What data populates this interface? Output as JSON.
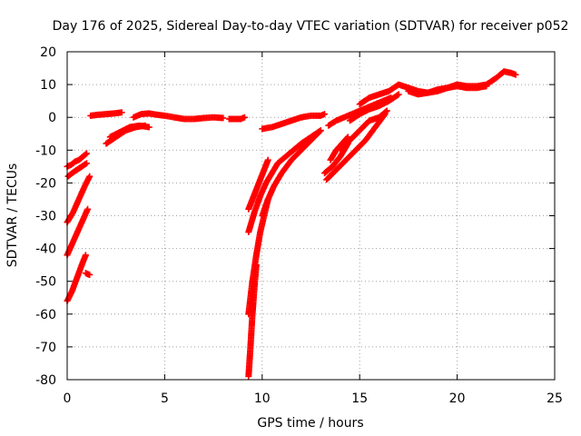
{
  "chart_data": {
    "type": "scatter",
    "title": "Day 176 of 2025, Sidereal Day-to-day VTEC variation (SDTVAR) for receiver p052",
    "xlabel": "GPS time / hours",
    "ylabel": "SDTVAR / TECUs",
    "xlim": [
      0,
      25
    ],
    "ylim": [
      -80,
      20
    ],
    "xticks": [
      "0",
      "5",
      "10",
      "15",
      "20",
      "25"
    ],
    "yticks": [
      "-80",
      "-70",
      "-60",
      "-50",
      "-40",
      "-30",
      "-20",
      "-10",
      "0",
      "10",
      "20"
    ],
    "grid": true,
    "marker": "+",
    "series": [
      {
        "name": "SDTVAR",
        "color": "#ff0000",
        "segments": [
          {
            "x": [
              0.0,
              0.2,
              0.4,
              0.6,
              0.8,
              1.0
            ],
            "y": [
              -15,
              -14.5,
              -13.5,
              -13,
              -12,
              -11
            ]
          },
          {
            "x": [
              0.05,
              0.25,
              0.5,
              0.75,
              1.0
            ],
            "y": [
              -18,
              -17,
              -16,
              -15,
              -14
            ]
          },
          {
            "x": [
              0.0,
              0.3,
              0.6,
              0.9,
              1.15
            ],
            "y": [
              -32,
              -29,
              -25,
              -21,
              -18
            ]
          },
          {
            "x": [
              0.0,
              0.3,
              0.6,
              0.9,
              1.05
            ],
            "y": [
              -42,
              -38,
              -34,
              -30,
              -28
            ]
          },
          {
            "x": [
              0.0,
              0.25,
              0.5,
              0.75,
              0.95
            ],
            "y": [
              -56,
              -53,
              -49,
              -45,
              -42
            ]
          },
          {
            "x": [
              0.95,
              1.05,
              1.15
            ],
            "y": [
              -47.5,
              -47.8,
              -48
            ]
          },
          {
            "x": [
              1.2,
              1.6,
              2.0,
              2.4,
              2.8
            ],
            "y": [
              0.5,
              0.8,
              1.0,
              1.2,
              1.5
            ]
          },
          {
            "x": [
              2.0,
              2.5,
              3.0,
              3.5,
              4.0
            ],
            "y": [
              -8,
              -6,
              -4,
              -3,
              -2.5
            ]
          },
          {
            "x": [
              2.2,
              2.7,
              3.2,
              3.7,
              4.2
            ],
            "y": [
              -6,
              -4.5,
              -3,
              -2.5,
              -3
            ]
          },
          {
            "x": [
              3.4,
              3.8,
              4.2,
              4.6,
              5.0,
              5.5,
              6.0,
              6.5,
              7.0,
              7.5,
              8.0
            ],
            "y": [
              0,
              1,
              1.2,
              0.8,
              0.5,
              0,
              -0.5,
              -0.5,
              -0.2,
              0,
              -0.2
            ]
          },
          {
            "x": [
              8.3,
              8.6,
              8.9,
              9.1
            ],
            "y": [
              -0.5,
              -0.5,
              -0.5,
              0
            ]
          },
          {
            "x": [
              9.3,
              9.4,
              9.5,
              9.6,
              9.7
            ],
            "y": [
              -79,
              -70,
              -60,
              -52,
              -45
            ]
          },
          {
            "x": [
              9.3,
              9.5,
              9.7,
              9.9,
              10.1,
              10.3
            ],
            "y": [
              -60,
              -50,
              -42,
              -35,
              -30,
              -25
            ]
          },
          {
            "x": [
              9.3,
              9.6,
              9.9,
              10.2,
              10.5,
              10.8,
              11.2,
              11.6,
              12.0,
              12.5,
              13.0
            ],
            "y": [
              -35,
              -29,
              -24,
              -20,
              -17,
              -14,
              -12,
              -10,
              -8,
              -6,
              -4
            ]
          },
          {
            "x": [
              9.3,
              9.5,
              9.7,
              9.9,
              10.1,
              10.3
            ],
            "y": [
              -28,
              -25,
              -22,
              -19,
              -16,
              -13
            ]
          },
          {
            "x": [
              10.0,
              10.3,
              10.6,
              11.0,
              11.5,
              12.0,
              12.5,
              13.0
            ],
            "y": [
              -30,
              -25,
              -21,
              -17,
              -13,
              -10,
              -7,
              -4
            ]
          },
          {
            "x": [
              10.0,
              10.5,
              11.0,
              11.5,
              12.0,
              12.5,
              13.0,
              13.2
            ],
            "y": [
              -3.5,
              -3,
              -2,
              -1,
              0,
              0.5,
              0.5,
              1
            ]
          },
          {
            "x": [
              13.2,
              13.6,
              14.0,
              14.4
            ],
            "y": [
              -17,
              -15,
              -12,
              -8
            ]
          },
          {
            "x": [
              13.5,
              13.8,
              14.1,
              14.4
            ],
            "y": [
              -13,
              -10,
              -8,
              -6
            ]
          },
          {
            "x": [
              13.3,
              13.8,
              14.3,
              14.8,
              15.3,
              15.8,
              16.3
            ],
            "y": [
              -19,
              -16,
              -13,
              -10,
              -7,
              -3,
              1
            ]
          },
          {
            "x": [
              14.0,
              14.5,
              15.0,
              15.5,
              16.0,
              16.4
            ],
            "y": [
              -10,
              -7,
              -4,
              -1,
              0,
              2
            ]
          },
          {
            "x": [
              13.4,
              13.8,
              14.2,
              14.6,
              15.0,
              15.4,
              15.8,
              16.2,
              16.6
            ],
            "y": [
              -2.5,
              -1,
              0,
              1,
              2,
              3,
              4,
              5,
              6
            ]
          },
          {
            "x": [
              14.5,
              15.0,
              15.5,
              16.0,
              16.5,
              17.0
            ],
            "y": [
              -1,
              1,
              2.5,
              3.5,
              5,
              7
            ]
          },
          {
            "x": [
              15.0,
              15.5,
              16.0,
              16.5,
              17.0,
              17.5,
              18.0,
              18.5,
              19.0,
              19.5,
              20.0,
              20.5,
              21.0,
              21.5,
              22.0,
              22.4,
              22.8,
              23.0
            ],
            "y": [
              4,
              6,
              7,
              8,
              10,
              9,
              8,
              7.5,
              8,
              9,
              10,
              9.5,
              9.5,
              10,
              12,
              14,
              13.5,
              13
            ]
          },
          {
            "x": [
              17.5,
              18.0,
              18.5,
              19.0,
              19.5,
              20.0,
              20.5,
              21.0,
              21.5
            ],
            "y": [
              8,
              7,
              7.5,
              8.5,
              9,
              9.5,
              9,
              9,
              9.5
            ]
          }
        ]
      }
    ]
  }
}
